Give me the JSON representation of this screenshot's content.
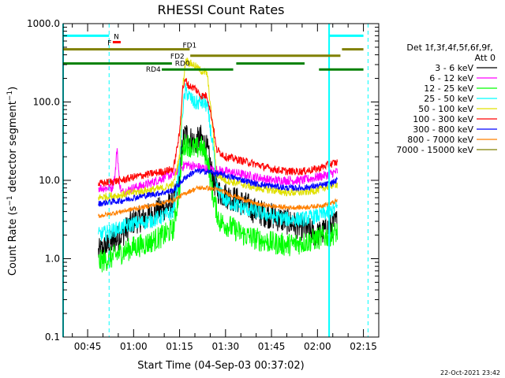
{
  "chart_data": {
    "type": "line",
    "title": "RHESSI Count Rates",
    "xlabel": "Start Time (04-Sep-03 00:37:02)",
    "ylabel": "Count Rate (s⁻¹ detector segment⁻¹)",
    "ylabel_parts": {
      "pre": "Count Rate (s",
      "sup1": "−1",
      "mid": " detector segment",
      "sup2": "−1",
      "post": ")"
    },
    "y_scale": "log",
    "ylim": [
      0.1,
      1000
    ],
    "y_ticks": [
      {
        "value": 0.1,
        "label": "0.1"
      },
      {
        "value": 1,
        "label": "1.0"
      },
      {
        "value": 10,
        "label": "10.0"
      },
      {
        "value": 100,
        "label": "100.0"
      },
      {
        "value": 1000,
        "label": "1000.0"
      }
    ],
    "xlim_minutes": [
      37.0,
      140.0
    ],
    "x_ticks": [
      {
        "minute": 45,
        "label": "00:45"
      },
      {
        "minute": 60,
        "label": "01:00"
      },
      {
        "minute": 75,
        "label": "01:15"
      },
      {
        "minute": 90,
        "label": "01:30"
      },
      {
        "minute": 105,
        "label": "01:45"
      },
      {
        "minute": 120,
        "label": "02:00"
      },
      {
        "minute": 135,
        "label": "02:15"
      }
    ],
    "grid": false,
    "legend": {
      "placement": "right",
      "header": [
        "Det 1f,3f,4f,5f,6f,9f,",
        "Att 0"
      ],
      "entries": [
        {
          "label": "3 - 6 keV",
          "color": "#000000"
        },
        {
          "label": "6 - 12 keV",
          "color": "#ff00ff"
        },
        {
          "label": "12 - 25 keV",
          "color": "#00ff00"
        },
        {
          "label": "25 - 50 keV",
          "color": "#00ffff"
        },
        {
          "label": "50 - 100 keV",
          "color": "#e0e000"
        },
        {
          "label": "100 - 300 keV",
          "color": "#ff0000"
        },
        {
          "label": "300 - 800 keV",
          "color": "#0000ff"
        },
        {
          "label": "800 - 7000 keV",
          "color": "#ff8000"
        },
        {
          "label": "7000 - 15000 keV",
          "color": "#808000"
        }
      ]
    },
    "data_window_minutes": [
      48.5,
      126.5
    ],
    "series": [
      {
        "name": "3 - 6 keV",
        "color": "#000000",
        "noise": 0.35,
        "points": [
          [
            48.5,
            1.2
          ],
          [
            52,
            1.5
          ],
          [
            56,
            2.0
          ],
          [
            60,
            3.0
          ],
          [
            65,
            3.5
          ],
          [
            70,
            4.5
          ],
          [
            73,
            5.0
          ],
          [
            75,
            10
          ],
          [
            76,
            30
          ],
          [
            77,
            40
          ],
          [
            78,
            35
          ],
          [
            80,
            30
          ],
          [
            82,
            35
          ],
          [
            84,
            25
          ],
          [
            86,
            10
          ],
          [
            88,
            7
          ],
          [
            92,
            6
          ],
          [
            96,
            5
          ],
          [
            100,
            4
          ],
          [
            105,
            3.5
          ],
          [
            110,
            3
          ],
          [
            115,
            2.5
          ],
          [
            120,
            2
          ],
          [
            124,
            2.5
          ],
          [
            126.5,
            3
          ]
        ]
      },
      {
        "name": "6 - 12 keV",
        "color": "#ff00ff",
        "noise": 0.12,
        "points": [
          [
            48.5,
            8
          ],
          [
            53,
            8
          ],
          [
            54,
            12
          ],
          [
            54.6,
            27
          ],
          [
            55.3,
            10
          ],
          [
            56,
            7
          ],
          [
            60,
            8
          ],
          [
            65,
            9
          ],
          [
            70,
            11
          ],
          [
            73,
            12
          ],
          [
            75,
            14
          ],
          [
            77,
            16
          ],
          [
            80,
            15
          ],
          [
            85,
            14
          ],
          [
            90,
            13
          ],
          [
            95,
            12
          ],
          [
            100,
            11
          ],
          [
            105,
            10
          ],
          [
            110,
            10
          ],
          [
            115,
            10
          ],
          [
            120,
            11
          ],
          [
            124,
            12
          ],
          [
            126.5,
            13
          ]
        ]
      },
      {
        "name": "12 - 25 keV",
        "color": "#00ff00",
        "noise": 0.3,
        "points": [
          [
            48.5,
            0.9
          ],
          [
            52,
            1.0
          ],
          [
            56,
            1.2
          ],
          [
            60,
            1.4
          ],
          [
            65,
            1.6
          ],
          [
            70,
            2.0
          ],
          [
            73,
            2.4
          ],
          [
            75,
            8
          ],
          [
            76,
            25
          ],
          [
            77,
            30
          ],
          [
            78,
            28
          ],
          [
            80,
            25
          ],
          [
            82,
            27
          ],
          [
            84,
            20
          ],
          [
            86,
            6
          ],
          [
            88,
            3
          ],
          [
            92,
            2.5
          ],
          [
            96,
            2.0
          ],
          [
            100,
            1.8
          ],
          [
            105,
            1.6
          ],
          [
            110,
            1.5
          ],
          [
            115,
            1.6
          ],
          [
            120,
            1.8
          ],
          [
            124,
            2.0
          ],
          [
            126.5,
            2.2
          ]
        ]
      },
      {
        "name": "25 - 50 keV",
        "color": "#00ffff",
        "noise": 0.2,
        "points": [
          [
            48.5,
            2.0
          ],
          [
            52,
            2.2
          ],
          [
            56,
            2.5
          ],
          [
            60,
            2.8
          ],
          [
            65,
            3.0
          ],
          [
            70,
            3.5
          ],
          [
            73,
            4.0
          ],
          [
            75,
            15
          ],
          [
            76,
            80
          ],
          [
            77,
            140
          ],
          [
            78,
            120
          ],
          [
            80,
            95
          ],
          [
            82,
            100
          ],
          [
            84,
            90
          ],
          [
            86,
            25
          ],
          [
            87,
            8
          ],
          [
            90,
            5.5
          ],
          [
            95,
            4.5
          ],
          [
            100,
            4.0
          ],
          [
            105,
            3.5
          ],
          [
            110,
            3.2
          ],
          [
            115,
            3.2
          ],
          [
            120,
            3.5
          ],
          [
            124,
            4.0
          ],
          [
            126.5,
            4.5
          ]
        ]
      },
      {
        "name": "50 - 100 keV",
        "color": "#e0e000",
        "noise": 0.1,
        "points": [
          [
            48.5,
            6
          ],
          [
            52,
            6.3
          ],
          [
            56,
            6.5
          ],
          [
            60,
            7
          ],
          [
            65,
            7.5
          ],
          [
            70,
            8
          ],
          [
            73,
            9
          ],
          [
            75,
            20
          ],
          [
            76,
            150
          ],
          [
            77,
            350
          ],
          [
            78,
            320
          ],
          [
            80,
            290
          ],
          [
            82,
            250
          ],
          [
            84,
            230
          ],
          [
            86,
            40
          ],
          [
            87,
            12
          ],
          [
            90,
            10
          ],
          [
            95,
            9
          ],
          [
            100,
            8
          ],
          [
            105,
            7.5
          ],
          [
            110,
            7
          ],
          [
            115,
            7
          ],
          [
            120,
            7.5
          ],
          [
            124,
            8.5
          ],
          [
            126.5,
            9
          ]
        ]
      },
      {
        "name": "100 - 300 keV",
        "color": "#ff0000",
        "noise": 0.1,
        "points": [
          [
            48.5,
            9
          ],
          [
            52,
            9.5
          ],
          [
            56,
            10
          ],
          [
            60,
            11
          ],
          [
            65,
            12
          ],
          [
            70,
            13
          ],
          [
            73,
            14
          ],
          [
            75,
            40
          ],
          [
            76,
            150
          ],
          [
            77,
            190
          ],
          [
            78,
            160
          ],
          [
            80,
            150
          ],
          [
            82,
            120
          ],
          [
            84,
            120
          ],
          [
            86,
            50
          ],
          [
            87,
            25
          ],
          [
            90,
            20
          ],
          [
            95,
            18
          ],
          [
            100,
            16
          ],
          [
            105,
            14
          ],
          [
            110,
            13
          ],
          [
            115,
            13
          ],
          [
            120,
            14
          ],
          [
            124,
            16
          ],
          [
            126.5,
            17
          ]
        ]
      },
      {
        "name": "300 - 800 keV",
        "color": "#0000ff",
        "noise": 0.08,
        "points": [
          [
            48.5,
            5
          ],
          [
            52,
            5.3
          ],
          [
            56,
            5.5
          ],
          [
            60,
            6
          ],
          [
            65,
            6.5
          ],
          [
            70,
            7
          ],
          [
            73,
            7.5
          ],
          [
            75,
            9
          ],
          [
            77,
            11
          ],
          [
            80,
            13
          ],
          [
            84,
            13
          ],
          [
            88,
            12
          ],
          [
            92,
            11
          ],
          [
            96,
            10
          ],
          [
            100,
            9
          ],
          [
            105,
            8.5
          ],
          [
            110,
            8
          ],
          [
            115,
            8
          ],
          [
            120,
            8.5
          ],
          [
            124,
            9
          ],
          [
            126.5,
            10
          ]
        ]
      },
      {
        "name": "800 - 7000 keV",
        "color": "#ff8000",
        "noise": 0.06,
        "points": [
          [
            48.5,
            3.5
          ],
          [
            52,
            3.7
          ],
          [
            56,
            4.0
          ],
          [
            60,
            4.3
          ],
          [
            65,
            4.7
          ],
          [
            70,
            5.2
          ],
          [
            73,
            5.6
          ],
          [
            75,
            6.2
          ],
          [
            78,
            7.2
          ],
          [
            81,
            8.0
          ],
          [
            84,
            8.0
          ],
          [
            88,
            7.5
          ],
          [
            92,
            6.5
          ],
          [
            96,
            5.7
          ],
          [
            100,
            5.0
          ],
          [
            105,
            4.7
          ],
          [
            110,
            4.5
          ],
          [
            115,
            4.5
          ],
          [
            120,
            4.7
          ],
          [
            124,
            5.0
          ],
          [
            126.5,
            5.5
          ]
        ]
      }
    ],
    "annotations": {
      "vertical_solid_cyan_minutes": [
        37.0,
        123.8
      ],
      "vertical_dashed_cyan_minutes": [
        52.0,
        136.5
      ],
      "bars": [
        {
          "label": "N",
          "color": "#00ffff",
          "y": 700,
          "segments": [
            [
              37,
              52
            ],
            [
              123.8,
              135
            ]
          ]
        },
        {
          "label": "F",
          "color": "#ff0000",
          "y": 580,
          "segments": [
            [
              53.2,
              55.8
            ]
          ]
        },
        {
          "label": "FD1",
          "color": "#808000",
          "y": 470,
          "segments": [
            [
              37,
              78.3
            ],
            [
              128,
              135
            ]
          ]
        },
        {
          "label": "FD2",
          "color": "#808000",
          "y": 390,
          "segments": [
            [
              78.5,
              127.5
            ]
          ]
        },
        {
          "label": "RD0",
          "color": "#008000",
          "y": 310,
          "segments": [
            [
              37,
              72.5
            ],
            [
              93.5,
              115.8
            ]
          ]
        },
        {
          "label": "RD4",
          "color": "#008000",
          "y": 260,
          "segments": [
            [
              69.2,
              92.5
            ],
            [
              120.5,
              135
            ]
          ]
        }
      ]
    }
  },
  "footer": {
    "timestamp": "22-Oct-2021 23:42"
  }
}
